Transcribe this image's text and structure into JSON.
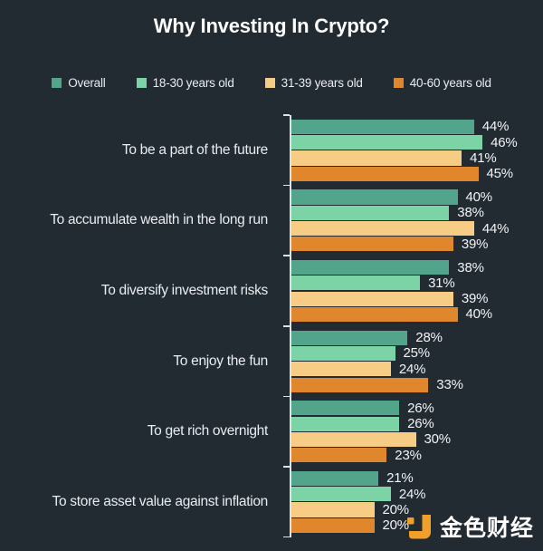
{
  "title": "Why Investing In Crypto?",
  "watermark": "金色财经",
  "colors": {
    "background": "#222a32",
    "axis": "#dde2e5",
    "title": "#ffffff",
    "category_label": "#e9edf0",
    "value_label": "#f2f4f6",
    "logo_orange": "#f0a028"
  },
  "chart_data": {
    "type": "bar",
    "orientation": "horizontal",
    "title": "Why Investing In Crypto?",
    "legend_position": "top",
    "grid": false,
    "value_suffix": "%",
    "xlim": [
      0,
      61
    ],
    "categories": [
      "To be a part of the future",
      "To accumulate wealth in the long run",
      "To diversify investment risks",
      "To enjoy the fun",
      "To get rich overnight",
      "To store asset value against inflation"
    ],
    "series": [
      {
        "name": "Overall",
        "color": "#52a58a",
        "values": [
          44,
          40,
          38,
          28,
          26,
          21
        ]
      },
      {
        "name": "18-30 years old",
        "color": "#7cd4a6",
        "values": [
          46,
          38,
          31,
          25,
          26,
          24
        ]
      },
      {
        "name": "31-39 years old",
        "color": "#f7cd85",
        "values": [
          41,
          44,
          39,
          24,
          30,
          20
        ]
      },
      {
        "name": "40-60 years old",
        "color": "#e0862d",
        "values": [
          45,
          39,
          40,
          33,
          23,
          20
        ]
      }
    ]
  }
}
